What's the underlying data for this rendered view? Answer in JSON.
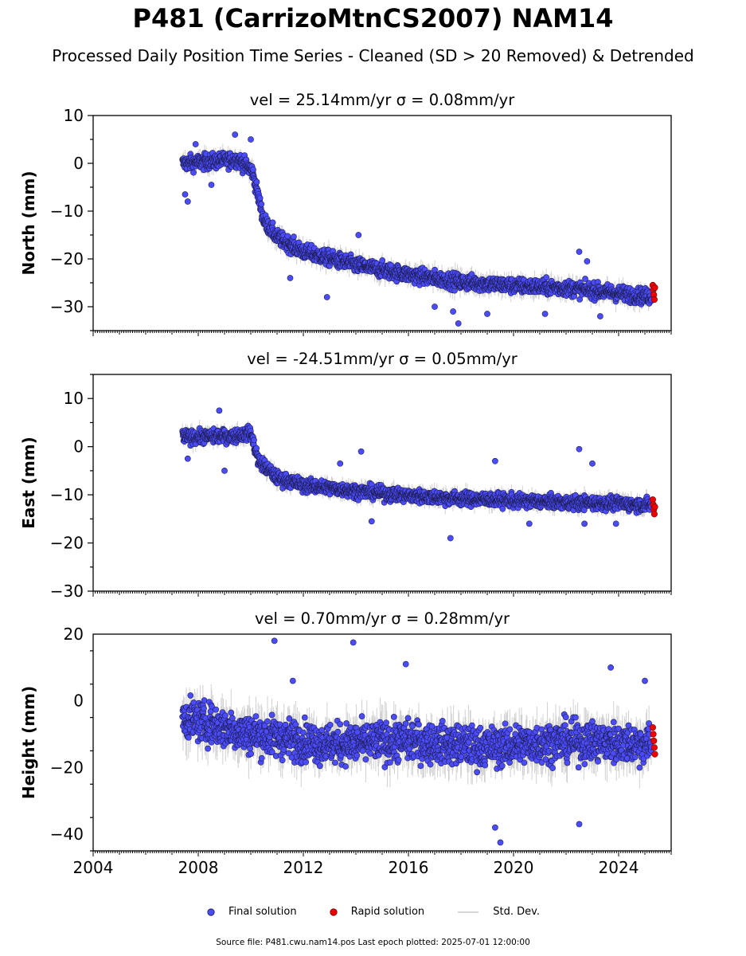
{
  "figure": {
    "title": "P481 (CarrizoMtnCS2007) NAM14",
    "subtitle": "Processed Daily Position Time Series - Cleaned (SD > 20 Removed) & Detrended",
    "footer": "Source file: P481.cwu.nam14.pos  Last epoch plotted: 2025-07-01 12:00:00"
  },
  "legend": {
    "final": "Final solution",
    "rapid": "Rapid solution",
    "stddev": "Std. Dev."
  },
  "colors": {
    "final_fill": "#4b4bff",
    "final_edge": "#1a1a40",
    "rapid_fill": "#ee0000",
    "stddev": "#bdbdbd"
  },
  "chart_data": [
    {
      "type": "scatter",
      "title": "vel = 25.14mm/yr   σ = 0.08mm/yr",
      "ylabel": "North (mm)",
      "xlim": [
        2004,
        2026
      ],
      "ylim": [
        -35,
        10
      ],
      "yticks": [
        10,
        0,
        -10,
        -20,
        -30
      ],
      "xticks": [],
      "model": [
        [
          2007.4,
          0
        ],
        [
          2009.5,
          0.8
        ],
        [
          2010.05,
          -1.5
        ],
        [
          2010.5,
          -12
        ],
        [
          2011.0,
          -15.5
        ],
        [
          2012.0,
          -18.5
        ],
        [
          2014.0,
          -21.3
        ],
        [
          2016.0,
          -23.3
        ],
        [
          2018.0,
          -24.8
        ],
        [
          2020.0,
          -25.6
        ],
        [
          2022.0,
          -26.1
        ],
        [
          2024.0,
          -27.2
        ],
        [
          2025.3,
          -28
        ]
      ],
      "noise": 1.5,
      "sd": 1.6,
      "x_range": [
        2007.4,
        2025.25
      ],
      "outliers": [
        [
          2007.5,
          -6.5
        ],
        [
          2007.6,
          -8
        ],
        [
          2007.9,
          4
        ],
        [
          2008.5,
          -4.5
        ],
        [
          2009.4,
          6
        ],
        [
          2010.0,
          5
        ],
        [
          2011.5,
          -24
        ],
        [
          2012.9,
          -28
        ],
        [
          2014.1,
          -15
        ],
        [
          2017.0,
          -30
        ],
        [
          2017.7,
          -31
        ],
        [
          2017.9,
          -33.5
        ],
        [
          2019.0,
          -31.5
        ],
        [
          2021.2,
          -31.5
        ],
        [
          2022.5,
          -18.5
        ],
        [
          2022.8,
          -20.5
        ],
        [
          2023.3,
          -32
        ]
      ],
      "rapid": [
        [
          2025.3,
          -25.5
        ],
        [
          2025.32,
          -26.5
        ],
        [
          2025.34,
          -27.5
        ],
        [
          2025.36,
          -28.5
        ],
        [
          2025.38,
          -26
        ]
      ]
    },
    {
      "type": "scatter",
      "title": "vel = -24.51mm/yr   σ = 0.05mm/yr",
      "ylabel": "East (mm)",
      "xlim": [
        2004,
        2026
      ],
      "ylim": [
        -30,
        15
      ],
      "yticks": [
        10,
        0,
        -10,
        -20,
        -30
      ],
      "xticks": [],
      "model": [
        [
          2007.4,
          2
        ],
        [
          2009.3,
          2.2
        ],
        [
          2010.0,
          2.8
        ],
        [
          2010.3,
          -3
        ],
        [
          2011.0,
          -6.5
        ],
        [
          2012.0,
          -8
        ],
        [
          2014.0,
          -9.2
        ],
        [
          2016.0,
          -10.2
        ],
        [
          2018.0,
          -10.8
        ],
        [
          2020.0,
          -11.2
        ],
        [
          2022.0,
          -11.6
        ],
        [
          2024.0,
          -11.8
        ],
        [
          2025.3,
          -12.2
        ]
      ],
      "noise": 1.3,
      "sd": 1.4,
      "x_range": [
        2007.4,
        2025.25
      ],
      "outliers": [
        [
          2007.6,
          -2.5
        ],
        [
          2008.8,
          7.5
        ],
        [
          2009.0,
          -5
        ],
        [
          2013.4,
          -3.5
        ],
        [
          2014.2,
          -1
        ],
        [
          2014.6,
          -15.5
        ],
        [
          2017.6,
          -19
        ],
        [
          2019.3,
          -3
        ],
        [
          2020.6,
          -16
        ],
        [
          2022.5,
          -0.5
        ],
        [
          2022.7,
          -16
        ],
        [
          2023.0,
          -3.5
        ],
        [
          2023.9,
          -16
        ]
      ],
      "rapid": [
        [
          2025.3,
          -11
        ],
        [
          2025.32,
          -12
        ],
        [
          2025.34,
          -13
        ],
        [
          2025.36,
          -14
        ],
        [
          2025.38,
          -12.5
        ]
      ]
    },
    {
      "type": "scatter",
      "title": "vel = 0.70mm/yr   σ = 0.28mm/yr",
      "ylabel": "Height (mm)",
      "xlim": [
        2004,
        2026
      ],
      "ylim": [
        -45,
        20
      ],
      "yticks": [
        20,
        0,
        -20,
        -40
      ],
      "xticks": [
        2004,
        2008,
        2012,
        2016,
        2020,
        2024
      ],
      "model": [
        [
          2007.4,
          -5
        ],
        [
          2010.0,
          -10
        ],
        [
          2013.0,
          -13
        ],
        [
          2016.0,
          -12
        ],
        [
          2019.0,
          -14
        ],
        [
          2022.0,
          -12
        ],
        [
          2025.3,
          -13
        ]
      ],
      "noise": 5.5,
      "sd": 5.5,
      "x_range": [
        2007.4,
        2025.25
      ],
      "outliers": [
        [
          2010.9,
          18
        ],
        [
          2011.6,
          6
        ],
        [
          2013.9,
          17.5
        ],
        [
          2015.9,
          11
        ],
        [
          2019.3,
          -38
        ],
        [
          2019.5,
          -42.5
        ],
        [
          2022.5,
          -37
        ],
        [
          2023.7,
          10
        ],
        [
          2025.0,
          6
        ]
      ],
      "rapid": [
        [
          2025.3,
          -8
        ],
        [
          2025.32,
          -10
        ],
        [
          2025.34,
          -12
        ],
        [
          2025.36,
          -14
        ],
        [
          2025.38,
          -16
        ]
      ]
    }
  ]
}
